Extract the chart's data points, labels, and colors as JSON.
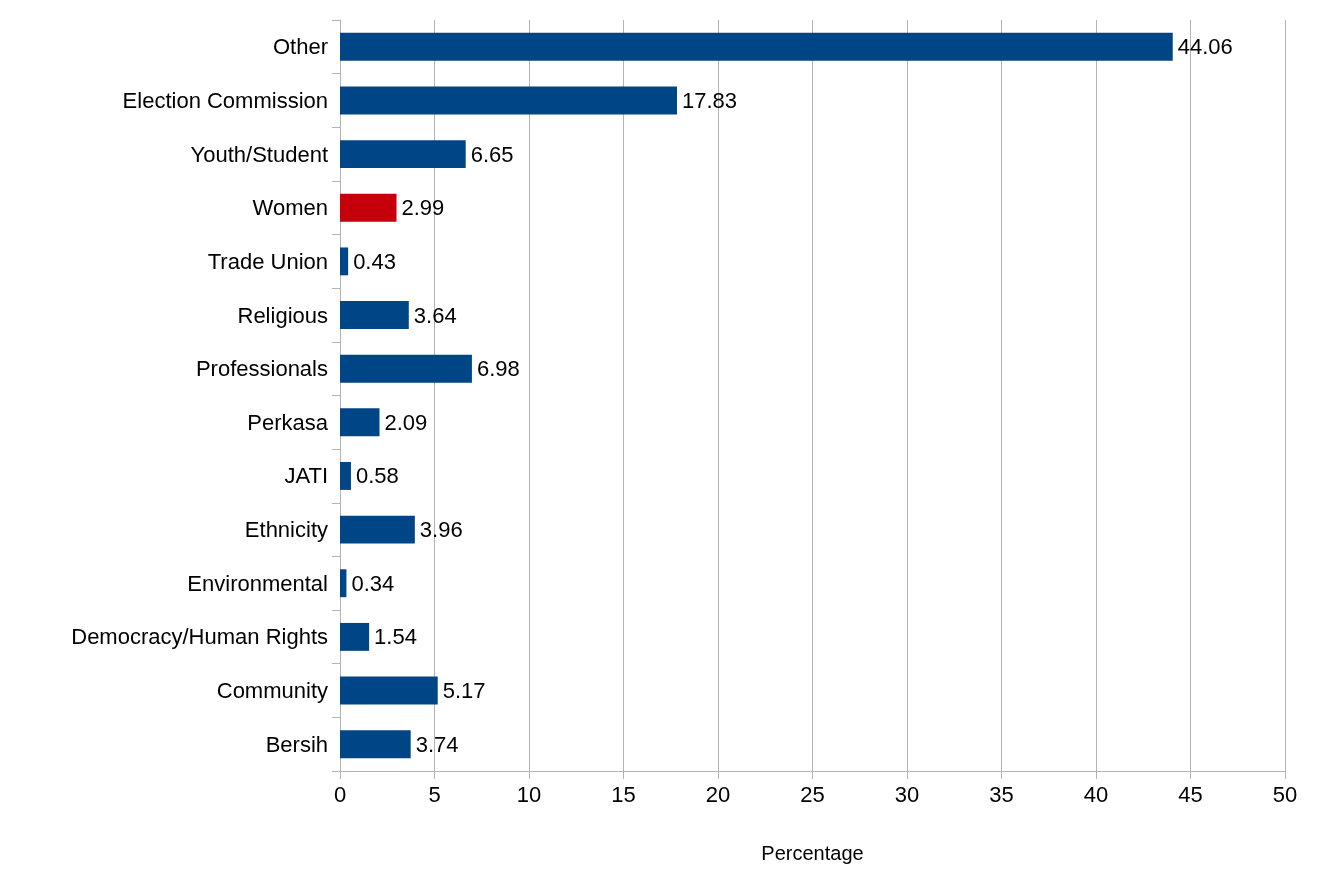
{
  "chart_data": {
    "type": "bar",
    "orientation": "horizontal",
    "xlabel": "Percentage",
    "categories": [
      "Other",
      "Election Commission",
      "Youth/Student",
      "Women",
      "Trade Union",
      "Religious",
      "Professionals",
      "Perkasa",
      "JATI",
      "Ethnicity",
      "Environmental",
      "Democracy/Human Rights",
      "Community",
      "Bersih"
    ],
    "values": [
      44.06,
      17.83,
      6.65,
      2.99,
      0.43,
      3.64,
      6.98,
      2.09,
      0.58,
      3.96,
      0.34,
      1.54,
      5.17,
      3.74
    ],
    "colors": [
      "#004586",
      "#004586",
      "#004586",
      "#c5000b",
      "#004586",
      "#004586",
      "#004586",
      "#004586",
      "#004586",
      "#004586",
      "#004586",
      "#004586",
      "#004586",
      "#004586"
    ],
    "xlim": [
      0,
      50
    ],
    "xticks": [
      0,
      5,
      10,
      15,
      20,
      25,
      30,
      35,
      40,
      45,
      50
    ],
    "grid": "x",
    "data_labels": true
  }
}
